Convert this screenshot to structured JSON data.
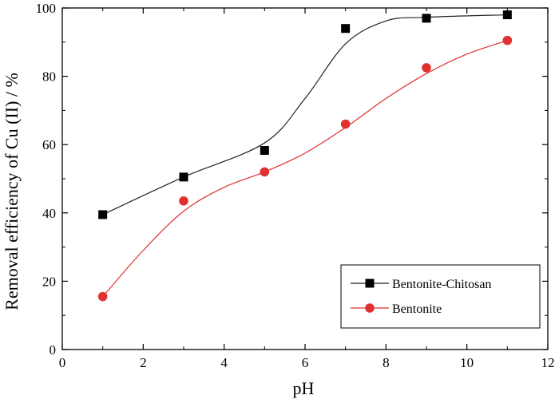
{
  "chart_data": {
    "type": "scatter",
    "title": "",
    "xlabel": "pH",
    "ylabel": "Removal efficiency  of Cu (II) / %",
    "xlim": [
      0,
      12
    ],
    "ylim": [
      0,
      100
    ],
    "x_ticks": [
      0,
      2,
      4,
      6,
      8,
      10,
      12
    ],
    "y_ticks": [
      0,
      20,
      40,
      60,
      80,
      100
    ],
    "grid": false,
    "legend_position": "bottom-right",
    "series": [
      {
        "name": "Bentonite-Chitosan",
        "marker": "square",
        "color": "#000000",
        "line_color": "#222222",
        "x": [
          1,
          3,
          5,
          7,
          9,
          11
        ],
        "y": [
          39.5,
          50.5,
          58.3,
          94.0,
          97.0,
          98.0
        ],
        "fit_x": [
          1,
          3,
          5,
          6,
          7,
          8,
          9,
          11
        ],
        "fit_y": [
          39.5,
          50.5,
          60.5,
          73.5,
          89.5,
          96.2,
          97.3,
          98.0
        ]
      },
      {
        "name": "Bentonite",
        "marker": "circle",
        "color": "#e03030",
        "line_color": "#e03030",
        "x": [
          1,
          3,
          5,
          7,
          9,
          11
        ],
        "y": [
          15.5,
          43.5,
          52.0,
          66.0,
          82.5,
          90.5
        ],
        "fit_x": [
          1,
          2,
          3,
          4,
          5,
          6,
          7,
          8,
          9,
          10,
          11
        ],
        "fit_y": [
          15.5,
          29.0,
          40.5,
          47.5,
          52.0,
          57.5,
          65.0,
          73.5,
          80.8,
          86.5,
          90.5
        ]
      }
    ]
  }
}
